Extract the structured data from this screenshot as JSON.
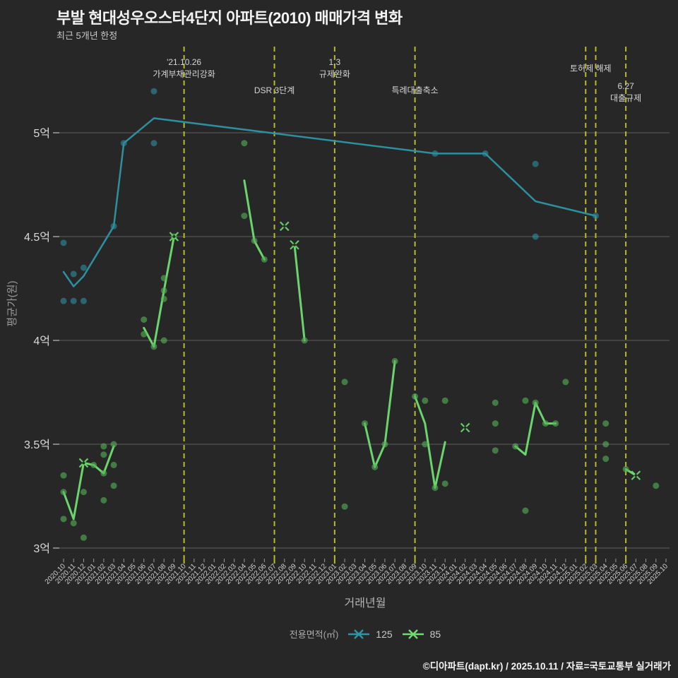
{
  "header": {
    "title": "부발 현대성우오스타4단지 아파트(2010) 매매가격 변화",
    "subtitle": "최근 5개년 한정"
  },
  "axes": {
    "y_title": "평균가(원)",
    "x_title": "거래년월",
    "y_ticks": [
      {
        "label": "3억",
        "value": 3.0
      },
      {
        "label": "3.5억",
        "value": 3.5
      },
      {
        "label": "4억",
        "value": 4.0
      },
      {
        "label": "4.5억",
        "value": 4.5
      },
      {
        "label": "5억",
        "value": 5.0
      }
    ],
    "x_tick_labels": [
      "2020.10",
      "2020.11",
      "2020.12",
      "2021.01",
      "2021.02",
      "2021.03",
      "2021.04",
      "2021.05",
      "2021.06",
      "2021.07",
      "2021.08",
      "2021.09",
      "2021.10",
      "2021.11",
      "2021.12",
      "2022.01",
      "2022.02",
      "2022.03",
      "2022.04",
      "2022.05",
      "2022.06",
      "2022.07",
      "2022.08",
      "2022.09",
      "2022.10",
      "2022.11",
      "2022.12",
      "2023.01",
      "2023.02",
      "2023.03",
      "2023.04",
      "2023.05",
      "2023.06",
      "2023.07",
      "2023.08",
      "2023.09",
      "2023.10",
      "2023.11",
      "2023.12",
      "2024.01",
      "2024.02",
      "2024.03",
      "2024.04",
      "2024.05",
      "2024.06",
      "2024.07",
      "2024.08",
      "2024.09",
      "2024.10",
      "2024.11",
      "2024.12",
      "2025.01",
      "2025.02",
      "2025.03",
      "2025.04",
      "2025.05",
      "2025.06",
      "2025.07",
      "2025.08",
      "2025.09",
      "2025.10"
    ]
  },
  "legend": {
    "label": "전용면적(㎡)",
    "items": [
      {
        "name": "125",
        "color": "#2e95a5"
      },
      {
        "name": "85",
        "color": "#6fdd71"
      }
    ]
  },
  "footer": {
    "credit": "©디아파트(dapt.kr) / 2025.10.11 / 자료=국토교통부 실거래가"
  },
  "colors": {
    "background": "#272727",
    "grid": "rgba(210,210,210,0.32)",
    "event_line": "#b9b92e",
    "tick": "#999999",
    "text_light": "#d9d9d9",
    "teal": "#2e95a5",
    "green": "#6fdd71"
  },
  "chart_data": {
    "type": "line",
    "title": "부발 현대성우오스타4단지 아파트(2010) 매매가격 변화",
    "xlabel": "거래년월",
    "ylabel": "평균가(원)",
    "x_range": [
      "2020.10",
      "2025.10"
    ],
    "ylim": [
      2.95,
      5.25
    ],
    "y_unit": "억원",
    "grid": true,
    "legend_position": "bottom",
    "series": [
      {
        "name": "125",
        "line_color": "#2e95a5",
        "dot_color": "#2e8c9c",
        "line_width": 2.5,
        "segments": [
          [
            [
              "2020.10",
              4.33
            ],
            [
              "2020.11",
              4.26
            ],
            [
              "2020.12",
              4.31
            ],
            [
              "2021.03",
              4.55
            ],
            [
              "2021.04",
              4.95
            ],
            [
              "2021.07",
              5.07
            ],
            [
              "2023.11",
              4.9
            ],
            [
              "2024.04",
              4.9
            ],
            [
              "2024.09",
              4.67
            ],
            [
              "2025.03",
              4.6
            ]
          ]
        ],
        "points": [
          [
            "2020.10",
            4.47
          ],
          [
            "2020.10",
            4.19
          ],
          [
            "2020.11",
            4.32
          ],
          [
            "2020.11",
            4.19
          ],
          [
            "2020.12",
            4.35
          ],
          [
            "2020.12",
            4.19
          ],
          [
            "2021.03",
            4.55
          ],
          [
            "2021.04",
            4.95
          ],
          [
            "2021.07",
            5.2
          ],
          [
            "2021.07",
            4.95
          ],
          [
            "2023.11",
            4.9
          ],
          [
            "2024.04",
            4.9
          ],
          [
            "2024.09",
            4.85
          ],
          [
            "2024.09",
            4.5
          ],
          [
            "2025.03",
            4.6
          ]
        ],
        "x_markers": []
      },
      {
        "name": "85",
        "line_color": "#6fdd71",
        "dot_color": "#55b058",
        "line_width": 3,
        "segments": [
          [
            [
              "2020.10",
              3.27
            ],
            [
              "2020.11",
              3.14
            ],
            [
              "2020.12",
              3.41
            ],
            [
              "2021.01",
              3.4
            ],
            [
              "2021.02",
              3.36
            ],
            [
              "2021.03",
              3.49
            ]
          ],
          [
            [
              "2021.06",
              4.06
            ],
            [
              "2021.07",
              3.97
            ],
            [
              "2021.08",
              4.24
            ],
            [
              "2021.09",
              4.5
            ]
          ],
          [
            [
              "2022.04",
              4.77
            ],
            [
              "2022.05",
              4.48
            ],
            [
              "2022.06",
              4.39
            ]
          ],
          [
            [
              "2022.09",
              4.46
            ],
            [
              "2022.10",
              4.0
            ]
          ],
          [
            [
              "2023.04",
              3.6
            ],
            [
              "2023.05",
              3.39
            ],
            [
              "2023.06",
              3.5
            ],
            [
              "2023.07",
              3.9
            ]
          ],
          [
            [
              "2023.09",
              3.73
            ],
            [
              "2023.10",
              3.6
            ],
            [
              "2023.11",
              3.29
            ],
            [
              "2023.12",
              3.51
            ]
          ],
          [
            [
              "2024.07",
              3.49
            ],
            [
              "2024.08",
              3.45
            ],
            [
              "2024.09",
              3.7
            ],
            [
              "2024.10",
              3.6
            ],
            [
              "2024.11",
              3.6
            ]
          ],
          [
            [
              "2025.06",
              3.38
            ],
            [
              "2025.07",
              3.35
            ]
          ]
        ],
        "points": [
          [
            "2020.10",
            3.35
          ],
          [
            "2020.10",
            3.27
          ],
          [
            "2020.10",
            3.14
          ],
          [
            "2020.11",
            3.12
          ],
          [
            "2020.12",
            3.27
          ],
          [
            "2020.12",
            3.05
          ],
          [
            "2021.01",
            3.4
          ],
          [
            "2021.02",
            3.49
          ],
          [
            "2021.02",
            3.45
          ],
          [
            "2021.02",
            3.36
          ],
          [
            "2021.02",
            3.23
          ],
          [
            "2021.03",
            3.5
          ],
          [
            "2021.03",
            3.4
          ],
          [
            "2021.03",
            3.3
          ],
          [
            "2021.06",
            4.1
          ],
          [
            "2021.06",
            4.03
          ],
          [
            "2021.07",
            3.97
          ],
          [
            "2021.08",
            4.3
          ],
          [
            "2021.08",
            4.24
          ],
          [
            "2021.08",
            4.2
          ],
          [
            "2021.08",
            4.0
          ],
          [
            "2021.09",
            4.5
          ],
          [
            "2022.04",
            4.95
          ],
          [
            "2022.04",
            4.6
          ],
          [
            "2022.05",
            4.48
          ],
          [
            "2022.06",
            4.39
          ],
          [
            "2022.10",
            4.0
          ],
          [
            "2023.02",
            3.8
          ],
          [
            "2023.02",
            3.2
          ],
          [
            "2023.04",
            3.6
          ],
          [
            "2023.05",
            3.39
          ],
          [
            "2023.06",
            3.5
          ],
          [
            "2023.07",
            3.9
          ],
          [
            "2023.09",
            3.73
          ],
          [
            "2023.10",
            3.71
          ],
          [
            "2023.10",
            3.5
          ],
          [
            "2023.11",
            3.29
          ],
          [
            "2023.12",
            3.71
          ],
          [
            "2023.12",
            3.31
          ],
          [
            "2024.05",
            3.7
          ],
          [
            "2024.05",
            3.6
          ],
          [
            "2024.05",
            3.47
          ],
          [
            "2024.07",
            3.49
          ],
          [
            "2024.08",
            3.71
          ],
          [
            "2024.08",
            3.18
          ],
          [
            "2024.09",
            3.7
          ],
          [
            "2024.10",
            3.6
          ],
          [
            "2024.11",
            3.6
          ],
          [
            "2024.12",
            3.8
          ],
          [
            "2025.04",
            3.6
          ],
          [
            "2025.04",
            3.5
          ],
          [
            "2025.04",
            3.43
          ],
          [
            "2025.06",
            3.38
          ],
          [
            "2025.09",
            3.3
          ]
        ],
        "x_markers": [
          [
            "2020.12",
            3.41
          ],
          [
            "2021.09",
            4.5
          ],
          [
            "2022.08",
            4.55
          ],
          [
            "2022.09",
            4.46
          ],
          [
            "2024.02",
            3.58
          ],
          [
            "2025.07",
            3.35
          ]
        ]
      }
    ],
    "event_lines": [
      {
        "month": "2021.10"
      },
      {
        "month": "2022.07"
      },
      {
        "month": "2023.01"
      },
      {
        "month": "2023.09"
      },
      {
        "month": "2025.02"
      },
      {
        "month": "2025.03"
      },
      {
        "month": "2025.06"
      }
    ],
    "annotations": [
      {
        "lines": [
          "'21.10.26",
          "가계부채관리강화"
        ],
        "anchor_month": "2021.10",
        "y": 92,
        "dx": 0
      },
      {
        "lines": [
          "DSR 3단계"
        ],
        "anchor_month": "2022.07",
        "y": 132,
        "dx": 0
      },
      {
        "lines": [
          "1.3",
          "규제완화"
        ],
        "anchor_month": "2023.01",
        "y": 92,
        "dx": 0
      },
      {
        "lines": [
          "특례대출축소"
        ],
        "anchor_month": "2023.09",
        "y": 132,
        "dx": 0
      },
      {
        "lines": [
          "토허제 해제"
        ],
        "anchor_month": "2025.02",
        "y": 101,
        "dx": 7
      },
      {
        "lines": [
          "6.27",
          "대출규제"
        ],
        "anchor_month": "2025.06",
        "y": 126,
        "dx": 0
      }
    ]
  }
}
